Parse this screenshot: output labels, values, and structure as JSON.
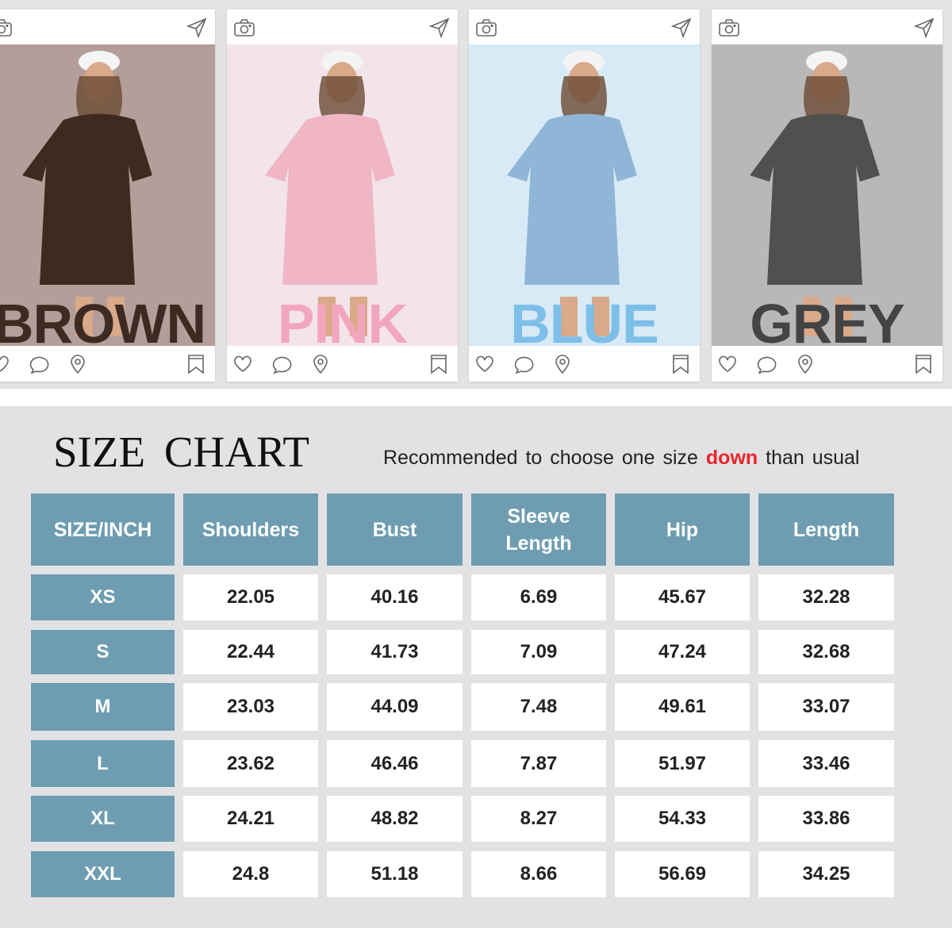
{
  "cards": [
    {
      "color_word": "BROWN",
      "word_color": "#3d2a22",
      "bg": "#b39e9a",
      "dress": "#3f2a22"
    },
    {
      "color_word": "PINK",
      "word_color": "#f2a6bd",
      "bg": "#f2e4e8",
      "dress": "#f0b6c6"
    },
    {
      "color_word": "BLUE",
      "word_color": "#7dbfe8",
      "bg": "#d8eaf6",
      "dress": "#8fb6d6"
    },
    {
      "color_word": "GREY",
      "word_color": "#444444",
      "bg": "#b8b8b8",
      "dress": "#4f514f"
    }
  ],
  "icons": {
    "header": [
      "camera-icon",
      "send-icon"
    ],
    "footer": [
      "heart-icon",
      "comment-icon",
      "location-pin-icon",
      "bookmark-icon"
    ]
  },
  "size_chart": {
    "title": "SIZE CHART",
    "note_before": "Recommended to choose one size ",
    "note_highlight": "down",
    "note_after": " than usual",
    "header_color": "#6e9db1",
    "highlight_color": "#e8262b",
    "columns": [
      "SIZE/INCH",
      "Shoulders",
      "Bust",
      "Sleeve Length",
      "Hip",
      "Length"
    ],
    "rows": [
      [
        "XS",
        "22.05",
        "40.16",
        "6.69",
        "45.67",
        "32.28"
      ],
      [
        "S",
        "22.44",
        "41.73",
        "7.09",
        "47.24",
        "32.68"
      ],
      [
        "M",
        "23.03",
        "44.09",
        "7.48",
        "49.61",
        "33.07"
      ],
      [
        "L",
        "23.62",
        "46.46",
        "7.87",
        "51.97",
        "33.46"
      ],
      [
        "XL",
        "24.21",
        "48.82",
        "8.27",
        "54.33",
        "33.86"
      ],
      [
        "XXL",
        "24.8",
        "51.18",
        "8.66",
        "56.69",
        "34.25"
      ]
    ]
  }
}
